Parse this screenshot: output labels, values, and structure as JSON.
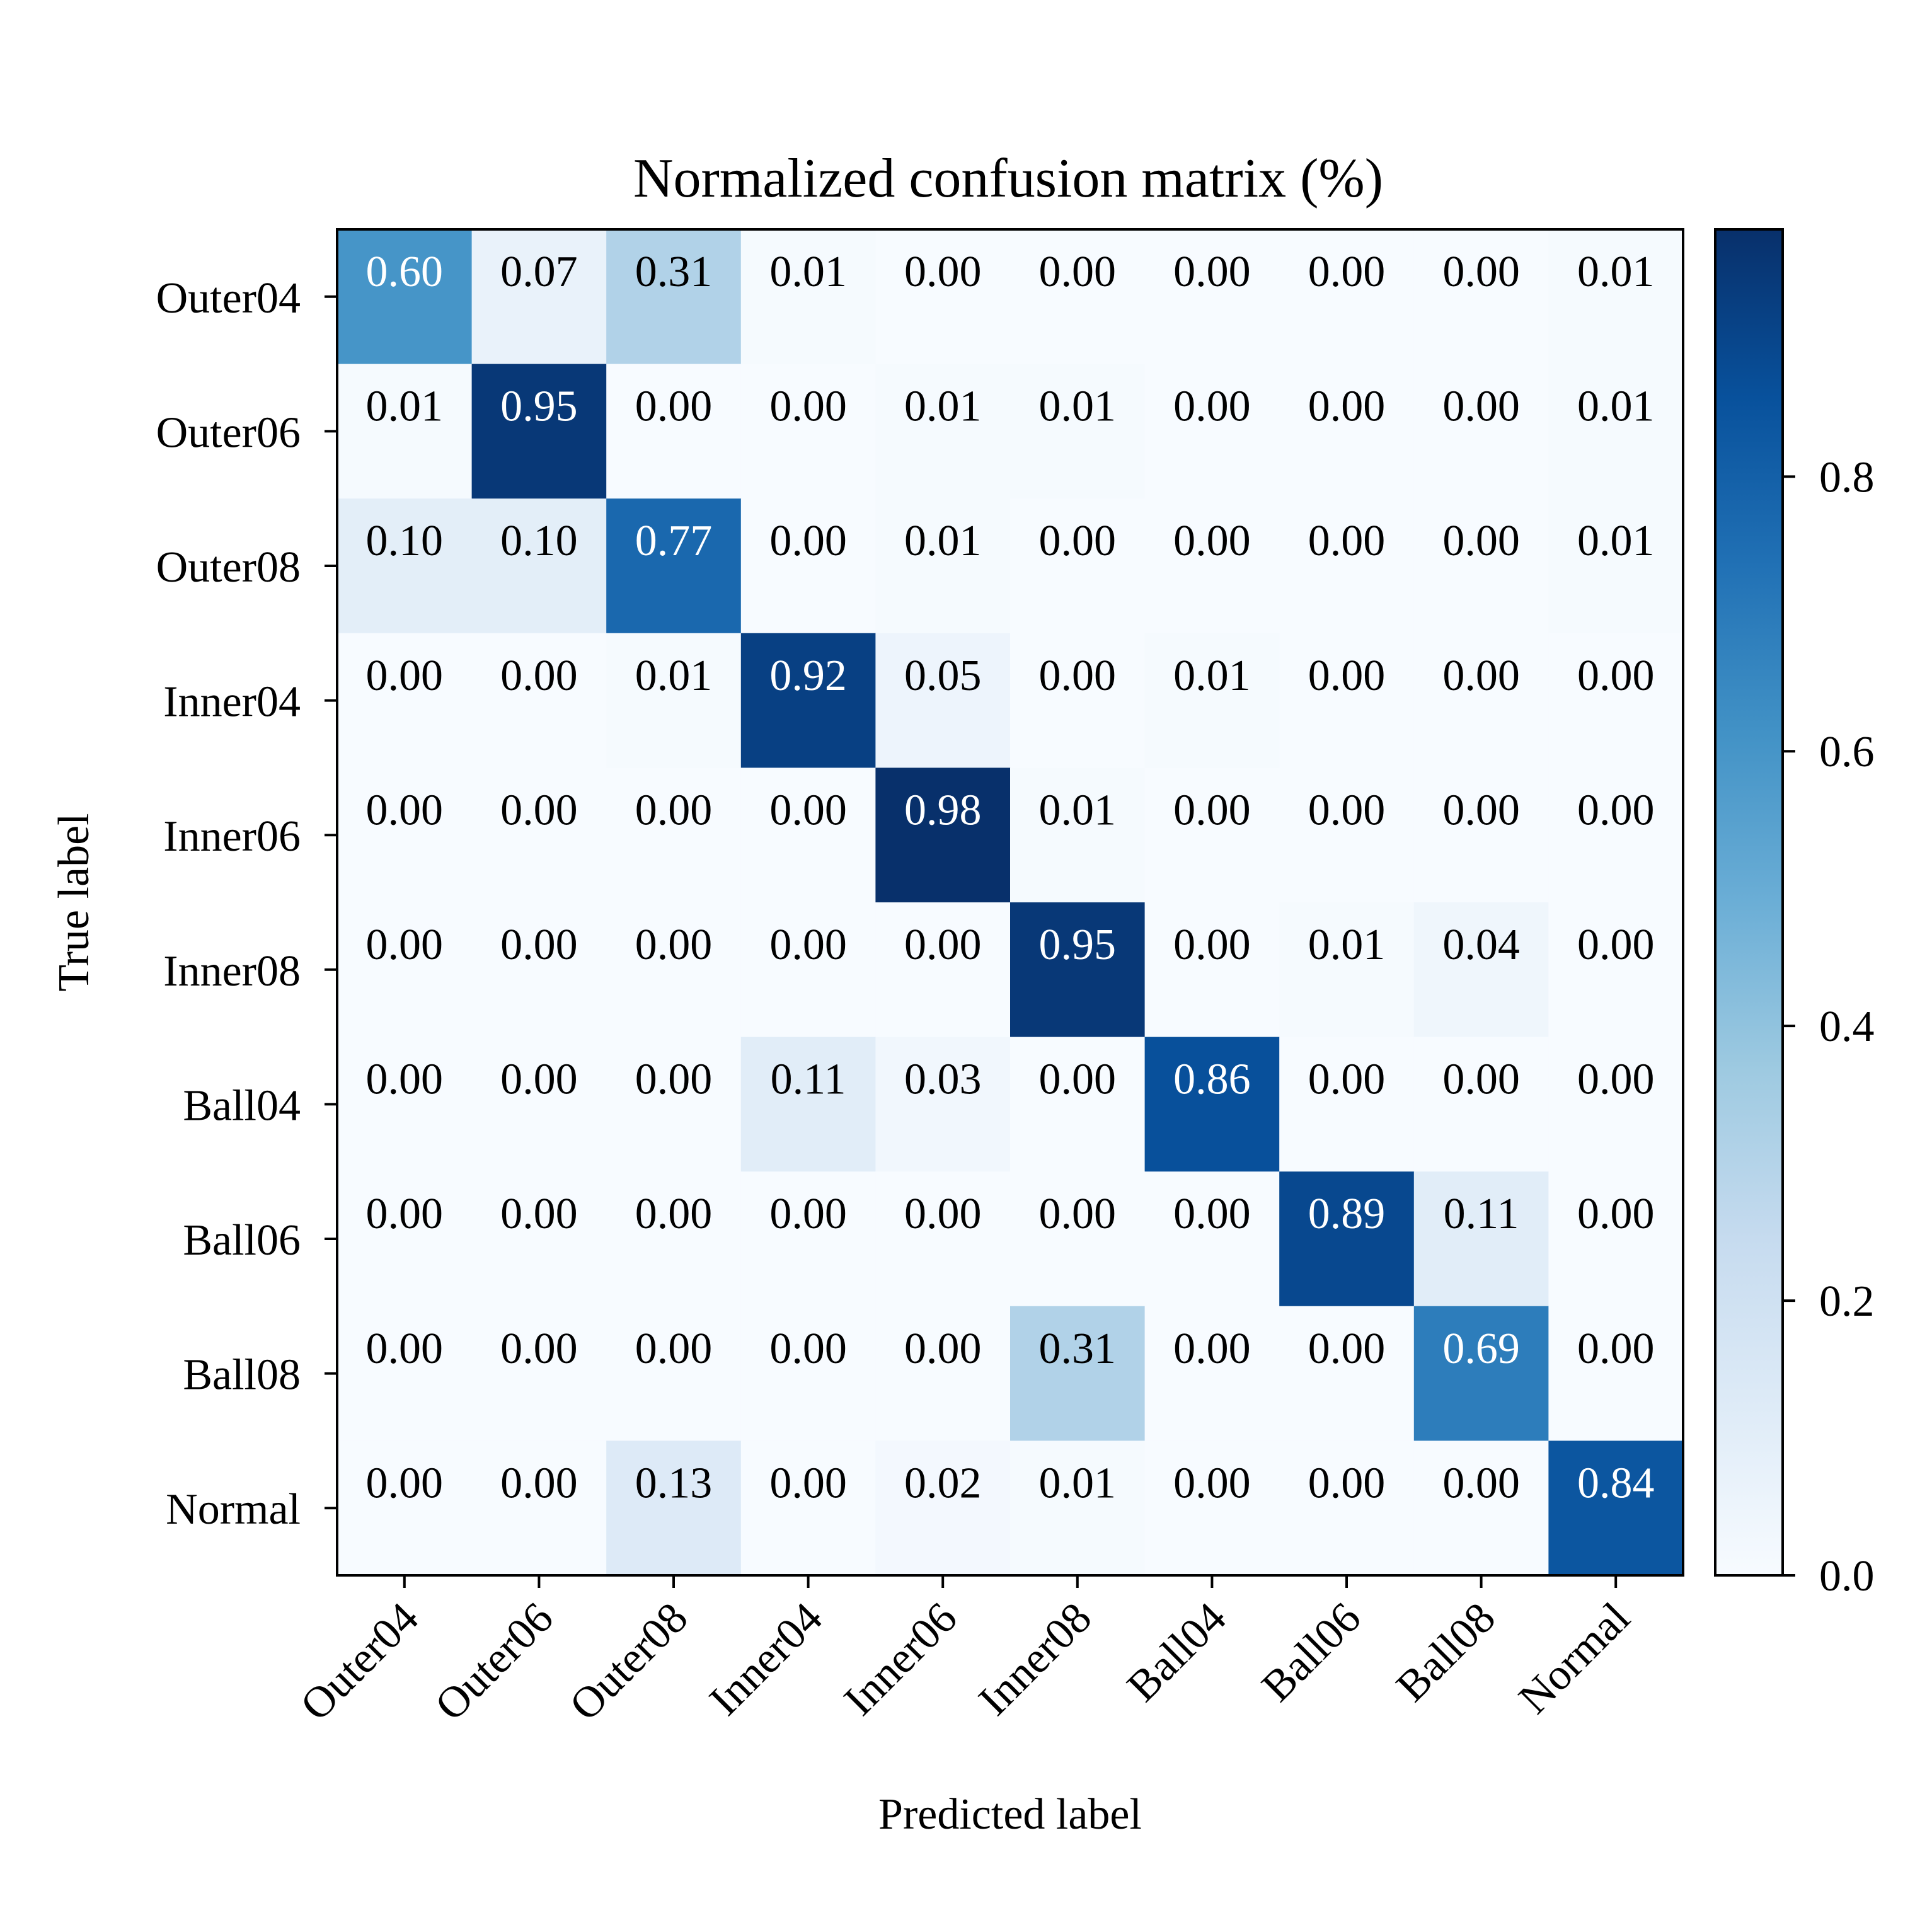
{
  "chart_data": {
    "type": "heatmap",
    "title": "Normalized confusion matrix (%)",
    "xlabel": "Predicted label",
    "ylabel": "True label",
    "x_categories": [
      "Outer04",
      "Outer06",
      "Outer08",
      "Inner04",
      "Inner06",
      "Inner08",
      "Ball04",
      "Ball06",
      "Ball08",
      "Normal"
    ],
    "y_categories": [
      "Outer04",
      "Outer06",
      "Outer08",
      "Inner04",
      "Inner06",
      "Inner08",
      "Ball04",
      "Ball06",
      "Ball08",
      "Normal"
    ],
    "values": [
      [
        0.6,
        0.07,
        0.31,
        0.01,
        0.0,
        0.0,
        0.0,
        0.0,
        0.0,
        0.01
      ],
      [
        0.01,
        0.95,
        0.0,
        0.0,
        0.01,
        0.01,
        0.0,
        0.0,
        0.0,
        0.01
      ],
      [
        0.1,
        0.1,
        0.77,
        0.0,
        0.01,
        0.0,
        0.0,
        0.0,
        0.0,
        0.01
      ],
      [
        0.0,
        0.0,
        0.01,
        0.92,
        0.05,
        0.0,
        0.01,
        0.0,
        0.0,
        0.0
      ],
      [
        0.0,
        0.0,
        0.0,
        0.0,
        0.98,
        0.01,
        0.0,
        0.0,
        0.0,
        0.0
      ],
      [
        0.0,
        0.0,
        0.0,
        0.0,
        0.0,
        0.95,
        0.0,
        0.01,
        0.04,
        0.0
      ],
      [
        0.0,
        0.0,
        0.0,
        0.11,
        0.03,
        0.0,
        0.86,
        0.0,
        0.0,
        0.0
      ],
      [
        0.0,
        0.0,
        0.0,
        0.0,
        0.0,
        0.0,
        0.0,
        0.89,
        0.11,
        0.0
      ],
      [
        0.0,
        0.0,
        0.0,
        0.0,
        0.0,
        0.31,
        0.0,
        0.0,
        0.69,
        0.0
      ],
      [
        0.0,
        0.0,
        0.13,
        0.0,
        0.02,
        0.01,
        0.0,
        0.0,
        0.0,
        0.84
      ]
    ],
    "colormap": "Blues",
    "colorbar": {
      "range": [
        0,
        0.98
      ],
      "ticks": [
        0.0,
        0.2,
        0.4,
        0.6,
        0.8
      ],
      "tick_labels": [
        "0.0",
        "0.2",
        "0.4",
        "0.6",
        "0.8"
      ]
    },
    "grid": false
  }
}
